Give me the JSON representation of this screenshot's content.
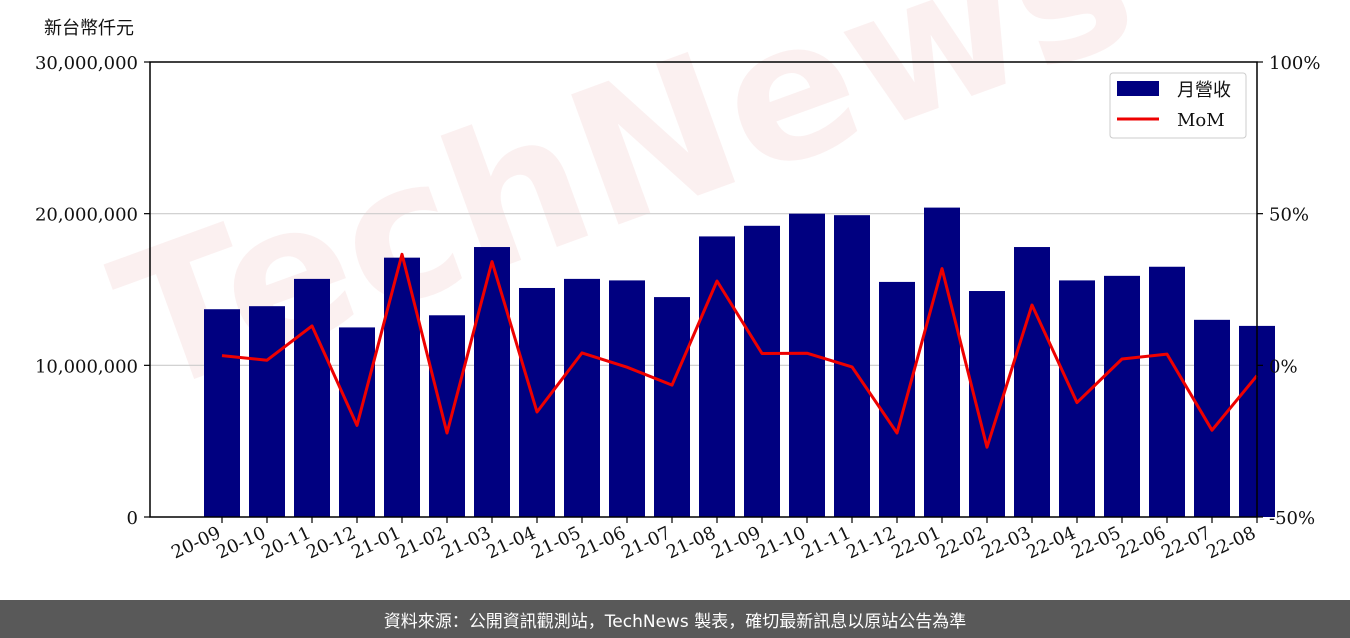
{
  "unit_label": "新台幣仟元",
  "footer_text": "資料來源：公開資訊觀測站，TechNews 製表，確切最新訊息以原站公告為準",
  "watermark_text": "TechNews",
  "colors": {
    "bar": "#000080",
    "line": "#ee0000",
    "footer_bg": "#595959",
    "grid": "#cccccc"
  },
  "chart_data": {
    "type": "bar",
    "categories": [
      "20-09",
      "20-10",
      "20-11",
      "20-12",
      "21-01",
      "21-02",
      "21-03",
      "21-04",
      "21-05",
      "21-06",
      "21-07",
      "21-08",
      "21-09",
      "21-10",
      "21-11",
      "21-12",
      "22-01",
      "22-02",
      "22-03",
      "22-04",
      "22-05",
      "22-06",
      "22-07",
      "22-08"
    ],
    "series": [
      {
        "name": "月營收",
        "axis": "left",
        "type": "bar",
        "values": [
          13700000,
          13900000,
          15700000,
          12500000,
          17100000,
          13300000,
          17800000,
          15100000,
          15700000,
          15600000,
          14500000,
          18500000,
          19200000,
          20000000,
          19900000,
          15500000,
          20400000,
          14900000,
          17800000,
          15600000,
          15900000,
          16500000,
          13000000,
          12600000
        ]
      },
      {
        "name": "MoM",
        "axis": "right",
        "type": "line",
        "values": [
          3.2,
          1.7,
          13.0,
          -19.8,
          36.6,
          -22.3,
          34.2,
          -15.4,
          4.1,
          -0.6,
          -6.5,
          27.8,
          3.9,
          4.0,
          -0.5,
          -22.3,
          31.9,
          -27.0,
          19.9,
          -12.3,
          2.1,
          3.7,
          -21.4,
          -3.4
        ]
      }
    ],
    "ylim_left": [
      0,
      30000000
    ],
    "yticks_left": [
      "0",
      "10,000,000",
      "20,000,000",
      "30,000,000"
    ],
    "ylim_right": [
      -50,
      100
    ],
    "yticks_right": [
      "-50%",
      "0%",
      "50%",
      "100%"
    ],
    "grid": "horizontal",
    "legend_position": "top-right"
  }
}
